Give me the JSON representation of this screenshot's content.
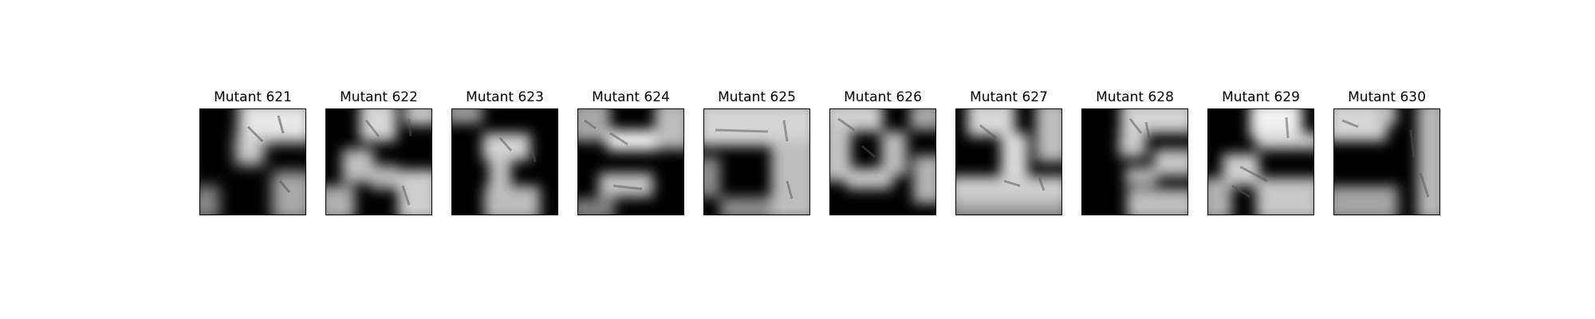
{
  "figure": {
    "background": "#ffffff",
    "panels": [
      {
        "title": "Mutant 621"
      },
      {
        "title": "Mutant 622"
      },
      {
        "title": "Mutant 623"
      },
      {
        "title": "Mutant 624"
      },
      {
        "title": "Mutant 625"
      },
      {
        "title": "Mutant 626"
      },
      {
        "title": "Mutant 627"
      },
      {
        "title": "Mutant 628"
      },
      {
        "title": "Mutant 629"
      },
      {
        "title": "Mutant 630"
      }
    ]
  }
}
